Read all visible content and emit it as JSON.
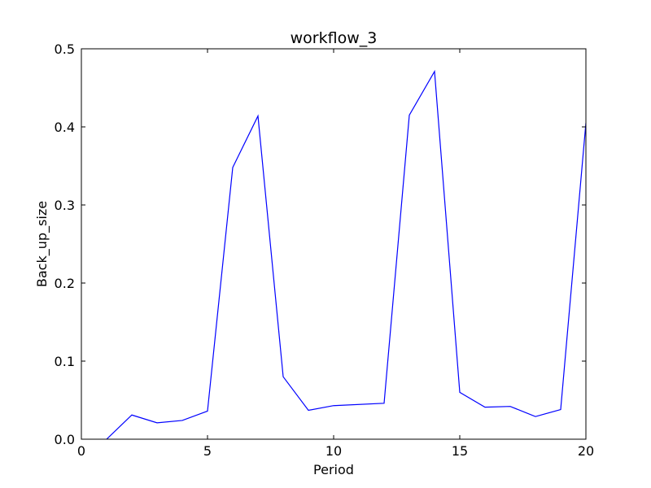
{
  "chart_data": {
    "type": "line",
    "title": "workflow_3",
    "xlabel": "Period",
    "ylabel": "Back_up_size",
    "xlim": [
      0,
      20
    ],
    "ylim": [
      0,
      0.5
    ],
    "xticks": [
      "0",
      "5",
      "10",
      "15",
      "20"
    ],
    "yticks": [
      "0.0",
      "0.1",
      "0.2",
      "0.3",
      "0.4",
      "0.5"
    ],
    "grid": false,
    "series": [
      {
        "color": "#0000ff",
        "x": [
          1,
          2,
          3,
          4,
          5,
          6,
          7,
          8,
          9,
          10,
          12,
          13,
          14,
          15,
          16,
          17,
          18,
          19,
          20
        ],
        "y": [
          0.0,
          0.031,
          0.021,
          0.024,
          0.036,
          0.348,
          0.414,
          0.08,
          0.037,
          0.043,
          0.046,
          0.415,
          0.471,
          0.06,
          0.041,
          0.042,
          0.029,
          0.038,
          0.405
        ]
      }
    ]
  }
}
